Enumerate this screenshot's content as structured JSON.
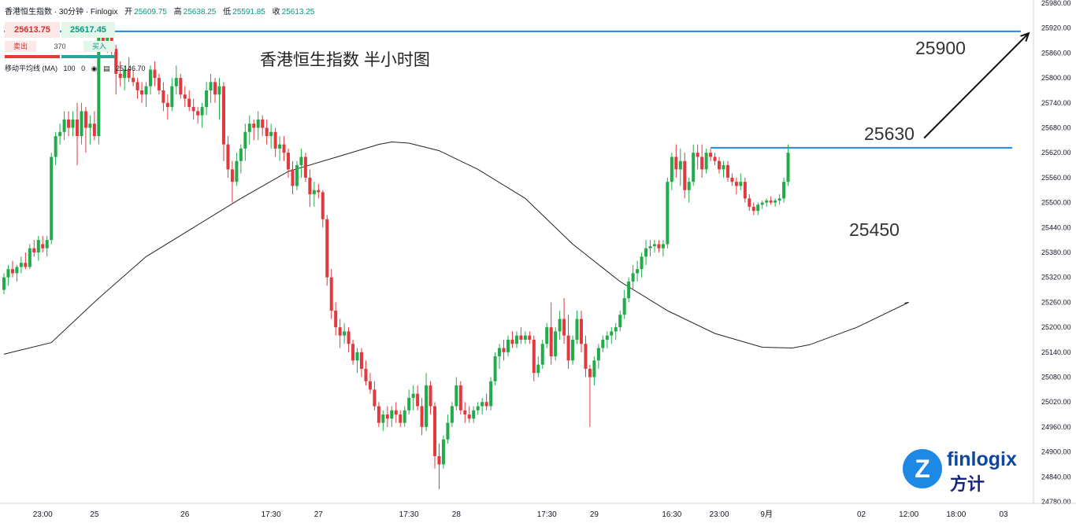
{
  "header": {
    "symbol": "香港恒生指数 · 30分钟 · Finlogix",
    "open_label": "开",
    "open": "25609.75",
    "high_label": "高",
    "high": "25638.25",
    "low_label": "低",
    "low": "25591.85",
    "close_label": "收",
    "close": "25613.25"
  },
  "trade_panel": {
    "bid": "25613.75",
    "ask": "25617.45",
    "sell_label": "卖出",
    "buy_label": "买入",
    "quantity": "370"
  },
  "indicator": {
    "name": "移动平均线 (MA)",
    "length": "100",
    "offset": "0",
    "value": "25146.70"
  },
  "colors": {
    "up": "#22ab4a",
    "down": "#e0393e",
    "ma": "#222222",
    "level": "#1e88e5",
    "arrow": "#111111"
  },
  "brand": {
    "wordmark": "finlogix",
    "cn": "方计",
    "icon": "finlogix-logo-icon"
  },
  "chart_data": {
    "type": "candlestick",
    "title": "香港恒生指数 半小时图",
    "y_ticks": [
      24780,
      24840,
      24900,
      24960,
      25020,
      25080,
      25140,
      25200,
      25260,
      25320,
      25380,
      25440,
      25500,
      25560,
      25620,
      25680,
      25740,
      25800,
      25860,
      25920,
      25980
    ],
    "ylim": [
      24770,
      25990
    ],
    "x_ticks": [
      {
        "label": "23:00",
        "i": 9
      },
      {
        "label": "25",
        "i": 21
      },
      {
        "label": "26",
        "i": 42
      },
      {
        "label": "17:30",
        "i": 62
      },
      {
        "label": "27",
        "i": 73
      },
      {
        "label": "17:30",
        "i": 94
      },
      {
        "label": "28",
        "i": 105
      },
      {
        "label": "17:30",
        "i": 126
      },
      {
        "label": "29",
        "i": 137
      },
      {
        "label": "16:30",
        "i": 155
      },
      {
        "label": "23:00",
        "i": 166
      },
      {
        "label": "9月",
        "i": 177
      },
      {
        "label": "02",
        "i": 199
      },
      {
        "label": "12:00",
        "i": 210
      },
      {
        "label": "18:00",
        "i": 221
      },
      {
        "label": "03",
        "i": 232
      }
    ],
    "annotations": {
      "resistance_top": "25900",
      "resistance_mid": "25630",
      "support": "25450"
    },
    "levels": [
      {
        "value": 25912,
        "from_i": 0,
        "to_i": 236
      },
      {
        "value": 25632,
        "from_i": 164,
        "to_i": 234
      }
    ],
    "arrow": {
      "from": [
        215,
        25640
      ],
      "to": [
        236,
        25900
      ]
    },
    "ma_series": [
      [
        0,
        25135
      ],
      [
        11,
        25163
      ],
      [
        22,
        25270
      ],
      [
        33,
        25370
      ],
      [
        44,
        25440
      ],
      [
        55,
        25510
      ],
      [
        66,
        25575
      ],
      [
        78,
        25612
      ],
      [
        87,
        25640
      ],
      [
        90,
        25646
      ],
      [
        94,
        25643
      ],
      [
        101,
        25625
      ],
      [
        110,
        25580
      ],
      [
        121,
        25510
      ],
      [
        132,
        25400
      ],
      [
        143,
        25310
      ],
      [
        154,
        25240
      ],
      [
        165,
        25185
      ],
      [
        176,
        25152
      ],
      [
        183,
        25150
      ],
      [
        187,
        25158
      ],
      [
        198,
        25200
      ],
      [
        210,
        25260
      ],
      [
        209,
        25258
      ]
    ],
    "ohlc": [
      [
        25290,
        25330,
        25280,
        25320
      ],
      [
        25320,
        25350,
        25300,
        25340
      ],
      [
        25340,
        25360,
        25320,
        25330
      ],
      [
        25330,
        25350,
        25310,
        25345
      ],
      [
        25345,
        25370,
        25330,
        25355
      ],
      [
        25355,
        25380,
        25340,
        25345
      ],
      [
        25345,
        25400,
        25340,
        25390
      ],
      [
        25390,
        25410,
        25370,
        25380
      ],
      [
        25380,
        25420,
        25360,
        25410
      ],
      [
        25400,
        25420,
        25380,
        25390
      ],
      [
        25390,
        25420,
        25370,
        25410
      ],
      [
        25410,
        25620,
        25400,
        25610
      ],
      [
        25610,
        25670,
        25590,
        25660
      ],
      [
        25660,
        25690,
        25640,
        25670
      ],
      [
        25670,
        25720,
        25650,
        25700
      ],
      [
        25700,
        25720,
        25660,
        25680
      ],
      [
        25680,
        25720,
        25660,
        25700
      ],
      [
        25700,
        25740,
        25590,
        25660
      ],
      [
        25660,
        25740,
        25640,
        25720
      ],
      [
        25720,
        25730,
        25620,
        25680
      ],
      [
        25680,
        25710,
        25640,
        25690
      ],
      [
        25690,
        25720,
        25650,
        25660
      ],
      [
        25660,
        25920,
        25640,
        25900
      ],
      [
        25900,
        25920,
        25870,
        25880
      ],
      [
        25880,
        25920,
        25860,
        25900
      ],
      [
        25900,
        25920,
        25850,
        25870
      ],
      [
        25870,
        25880,
        25760,
        25810
      ],
      [
        25810,
        25840,
        25780,
        25800
      ],
      [
        25800,
        25830,
        25770,
        25820
      ],
      [
        25820,
        25850,
        25790,
        25800
      ],
      [
        25800,
        25820,
        25780,
        25790
      ],
      [
        25790,
        25800,
        25750,
        25770
      ],
      [
        25770,
        25790,
        25740,
        25760
      ],
      [
        25760,
        25790,
        25730,
        25780
      ],
      [
        25780,
        25830,
        25760,
        25820
      ],
      [
        25820,
        25840,
        25780,
        25800
      ],
      [
        25800,
        25810,
        25760,
        25770
      ],
      [
        25770,
        25790,
        25720,
        25740
      ],
      [
        25740,
        25760,
        25700,
        25730
      ],
      [
        25730,
        25800,
        25720,
        25780
      ],
      [
        25780,
        25830,
        25760,
        25800
      ],
      [
        25800,
        25810,
        25750,
        25760
      ],
      [
        25760,
        25780,
        25730,
        25750
      ],
      [
        25750,
        25770,
        25720,
        25730
      ],
      [
        25730,
        25750,
        25700,
        25720
      ],
      [
        25720,
        25730,
        25690,
        25710
      ],
      [
        25710,
        25740,
        25680,
        25730
      ],
      [
        25730,
        25790,
        25710,
        25770
      ],
      [
        25770,
        25810,
        25740,
        25790
      ],
      [
        25790,
        25800,
        25740,
        25760
      ],
      [
        25760,
        25800,
        25700,
        25780
      ],
      [
        25780,
        25790,
        25600,
        25640
      ],
      [
        25640,
        25660,
        25560,
        25580
      ],
      [
        25580,
        25600,
        25500,
        25550
      ],
      [
        25550,
        25620,
        25540,
        25600
      ],
      [
        25600,
        25640,
        25570,
        25630
      ],
      [
        25630,
        25690,
        25600,
        25670
      ],
      [
        25670,
        25710,
        25640,
        25690
      ],
      [
        25690,
        25700,
        25650,
        25680
      ],
      [
        25680,
        25720,
        25650,
        25700
      ],
      [
        25700,
        25710,
        25660,
        25680
      ],
      [
        25680,
        25700,
        25640,
        25660
      ],
      [
        25660,
        25690,
        25630,
        25670
      ],
      [
        25670,
        25680,
        25610,
        25630
      ],
      [
        25630,
        25660,
        25600,
        25640
      ],
      [
        25640,
        25660,
        25600,
        25620
      ],
      [
        25620,
        25630,
        25560,
        25580
      ],
      [
        25580,
        25600,
        25520,
        25540
      ],
      [
        25540,
        25600,
        25530,
        25590
      ],
      [
        25590,
        25630,
        25560,
        25610
      ],
      [
        25610,
        25620,
        25550,
        25560
      ],
      [
        25560,
        25580,
        25490,
        25520
      ],
      [
        25520,
        25550,
        25490,
        25530
      ],
      [
        25530,
        25545,
        25510,
        25525
      ],
      [
        25525,
        25530,
        25440,
        25460
      ],
      [
        25460,
        25470,
        25300,
        25320
      ],
      [
        25320,
        25340,
        25220,
        25240
      ],
      [
        25240,
        25260,
        25180,
        25200
      ],
      [
        25200,
        25220,
        25150,
        25180
      ],
      [
        25180,
        25210,
        25160,
        25190
      ],
      [
        25190,
        25200,
        25140,
        25160
      ],
      [
        25160,
        25170,
        25110,
        25120
      ],
      [
        25120,
        25150,
        25090,
        25140
      ],
      [
        25140,
        25150,
        25080,
        25100
      ],
      [
        25100,
        25120,
        25060,
        25070
      ],
      [
        25070,
        25090,
        25040,
        25050
      ],
      [
        25050,
        25070,
        25000,
        25010
      ],
      [
        25010,
        25020,
        24960,
        24970
      ],
      [
        24970,
        25000,
        24950,
        24990
      ],
      [
        24990,
        25010,
        24960,
        24980
      ],
      [
        24980,
        25010,
        24960,
        25000
      ],
      [
        25000,
        25020,
        24970,
        24990
      ],
      [
        24990,
        25000,
        24960,
        24970
      ],
      [
        24970,
        25010,
        24960,
        25000
      ],
      [
        25000,
        25050,
        24990,
        25030
      ],
      [
        25030,
        25060,
        25000,
        25040
      ],
      [
        25040,
        25060,
        25000,
        25010
      ],
      [
        25010,
        25030,
        24940,
        24960
      ],
      [
        24960,
        25090,
        24950,
        25060
      ],
      [
        25060,
        25070,
        24990,
        25010
      ],
      [
        25010,
        25020,
        24860,
        24890
      ],
      [
        24890,
        24920,
        24810,
        24870
      ],
      [
        24870,
        24940,
        24860,
        24930
      ],
      [
        24930,
        24990,
        24920,
        24970
      ],
      [
        24970,
        25020,
        24960,
        25010
      ],
      [
        25010,
        25080,
        25000,
        25060
      ],
      [
        25060,
        25070,
        24990,
        25000
      ],
      [
        25000,
        25020,
        24970,
        24990
      ],
      [
        24990,
        25010,
        24970,
        24980
      ],
      [
        24980,
        25010,
        24970,
        25000
      ],
      [
        25000,
        25020,
        24990,
        25010
      ],
      [
        25010,
        25030,
        24990,
        25020
      ],
      [
        25020,
        25040,
        25000,
        25010
      ],
      [
        25010,
        25080,
        25000,
        25070
      ],
      [
        25070,
        25140,
        25060,
        25130
      ],
      [
        25130,
        25160,
        25100,
        25150
      ],
      [
        25150,
        25170,
        25120,
        25140
      ],
      [
        25140,
        25180,
        25130,
        25170
      ],
      [
        25170,
        25190,
        25150,
        25160
      ],
      [
        25160,
        25190,
        25150,
        25180
      ],
      [
        25180,
        25200,
        25160,
        25170
      ],
      [
        25170,
        25190,
        25160,
        25180
      ],
      [
        25180,
        25190,
        25160,
        25170
      ],
      [
        25170,
        25180,
        25070,
        25090
      ],
      [
        25090,
        25130,
        25080,
        25110
      ],
      [
        25110,
        25170,
        25100,
        25160
      ],
      [
        25160,
        25210,
        25150,
        25200
      ],
      [
        25200,
        25260,
        25110,
        25130
      ],
      [
        25130,
        25200,
        25120,
        25190
      ],
      [
        25190,
        25240,
        25170,
        25220
      ],
      [
        25220,
        25270,
        25160,
        25180
      ],
      [
        25180,
        25230,
        25100,
        25120
      ],
      [
        25120,
        25180,
        25110,
        25170
      ],
      [
        25170,
        25240,
        25160,
        25220
      ],
      [
        25220,
        25240,
        25140,
        25160
      ],
      [
        25160,
        25180,
        25080,
        25100
      ],
      [
        25100,
        25110,
        24960,
        25080
      ],
      [
        25080,
        25130,
        25060,
        25120
      ],
      [
        25120,
        25160,
        25100,
        25150
      ],
      [
        25150,
        25180,
        25140,
        25170
      ],
      [
        25170,
        25190,
        25150,
        25180
      ],
      [
        25180,
        25200,
        25160,
        25190
      ],
      [
        25190,
        25210,
        25170,
        25200
      ],
      [
        25200,
        25240,
        25190,
        25230
      ],
      [
        25230,
        25290,
        25220,
        25270
      ],
      [
        25270,
        25320,
        25260,
        25310
      ],
      [
        25310,
        25350,
        25290,
        25330
      ],
      [
        25330,
        25360,
        25310,
        25340
      ],
      [
        25340,
        25380,
        25320,
        25370
      ],
      [
        25370,
        25410,
        25350,
        25390
      ],
      [
        25390,
        25410,
        25370,
        25395
      ],
      [
        25395,
        25410,
        25380,
        25400
      ],
      [
        25400,
        25410,
        25380,
        25390
      ],
      [
        25390,
        25410,
        25370,
        25400
      ],
      [
        25400,
        25560,
        25390,
        25550
      ],
      [
        25550,
        25620,
        25530,
        25610
      ],
      [
        25610,
        25640,
        25560,
        25580
      ],
      [
        25580,
        25630,
        25540,
        25600
      ],
      [
        25600,
        25620,
        25510,
        25530
      ],
      [
        25530,
        25560,
        25500,
        25550
      ],
      [
        25550,
        25640,
        25540,
        25620
      ],
      [
        25620,
        25640,
        25580,
        25610
      ],
      [
        25610,
        25640,
        25560,
        25580
      ],
      [
        25580,
        25630,
        25570,
        25620
      ],
      [
        25620,
        25630,
        25600,
        25610
      ],
      [
        25610,
        25620,
        25590,
        25600
      ],
      [
        25600,
        25610,
        25570,
        25580
      ],
      [
        25580,
        25600,
        25560,
        25590
      ],
      [
        25590,
        25600,
        25550,
        25560
      ],
      [
        25560,
        25570,
        25540,
        25550
      ],
      [
        25550,
        25560,
        25520,
        25540
      ],
      [
        25540,
        25570,
        25530,
        25550
      ],
      [
        25550,
        25560,
        25500,
        25510
      ],
      [
        25510,
        25520,
        25480,
        25490
      ],
      [
        25490,
        25500,
        25470,
        25480
      ],
      [
        25480,
        25500,
        25470,
        25495
      ],
      [
        25495,
        25505,
        25485,
        25500
      ],
      [
        25500,
        25510,
        25490,
        25505
      ],
      [
        25505,
        25515,
        25495,
        25500
      ],
      [
        25500,
        25510,
        25490,
        25505
      ],
      [
        25505,
        25520,
        25495,
        25510
      ],
      [
        25510,
        25560,
        25500,
        25550
      ],
      [
        25550,
        25640,
        25540,
        25620
      ]
    ]
  }
}
